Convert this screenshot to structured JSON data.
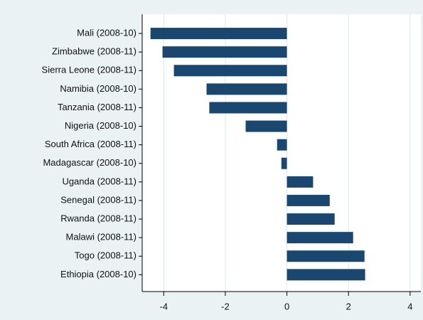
{
  "chart_data": {
    "type": "hbar",
    "categories": [
      "Mali (2008-10)",
      "Zimbabwe (2008-11)",
      "Sierra Leone (2008-11)",
      "Namibia (2008-10)",
      "Tanzania (2008-11)",
      "Nigeria (2008-10)",
      "South Africa (2008-11)",
      "Madagascar (2008-10)",
      "Uganda (2008-11)",
      "Senegal (2008-11)",
      "Rwanda (2008-11)",
      "Malawi (2008-11)",
      "Togo (2008-11)",
      "Ethiopia (2008-10)"
    ],
    "values": [
      -4.43,
      -4.04,
      -3.67,
      -2.61,
      -2.52,
      -1.34,
      -0.32,
      -0.18,
      0.85,
      1.39,
      1.55,
      2.15,
      2.52,
      2.54
    ],
    "color": "#1a476f",
    "xlim": [
      -4.7,
      4.35
    ],
    "xticks": [
      -4,
      -2,
      0,
      2,
      4
    ],
    "grid": true
  }
}
